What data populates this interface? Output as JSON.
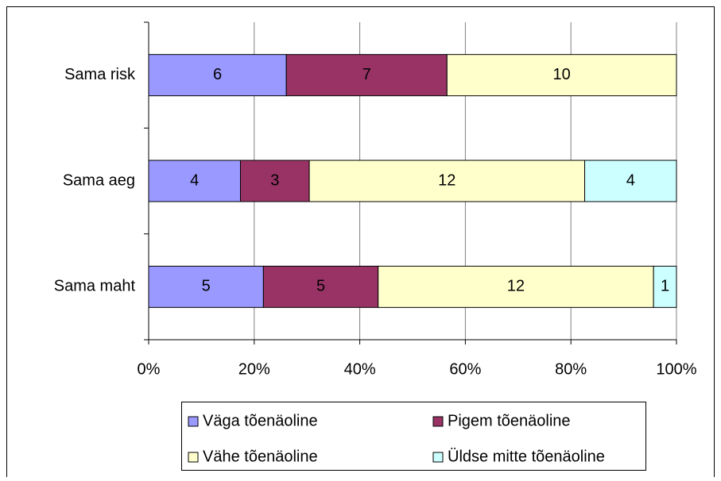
{
  "chart_data": {
    "type": "bar",
    "orientation": "horizontal",
    "stack": "percent",
    "categories": [
      "Sama risk",
      "Sama aeg",
      "Sama maht"
    ],
    "series": [
      {
        "name": "Väga tõenäoline",
        "color": "#9999ff",
        "values": [
          6,
          4,
          5
        ]
      },
      {
        "name": "Pigem tõenäoline",
        "color": "#993366",
        "values": [
          7,
          3,
          5
        ]
      },
      {
        "name": "Vähe tõenäoline",
        "color": "#ffffcc",
        "values": [
          10,
          12,
          12
        ]
      },
      {
        "name": "Üldse mitte tõenäoline",
        "color": "#ccffff",
        "values": [
          null,
          4,
          1
        ]
      }
    ],
    "xlim": [
      0,
      100
    ],
    "xticks": [
      {
        "value": 0,
        "label": "0%"
      },
      {
        "value": 20,
        "label": "20%"
      },
      {
        "value": 40,
        "label": "40%"
      },
      {
        "value": 60,
        "label": "60%"
      },
      {
        "value": 80,
        "label": "80%"
      },
      {
        "value": 100,
        "label": "100%"
      }
    ],
    "grid": true,
    "legend": "bottom"
  }
}
